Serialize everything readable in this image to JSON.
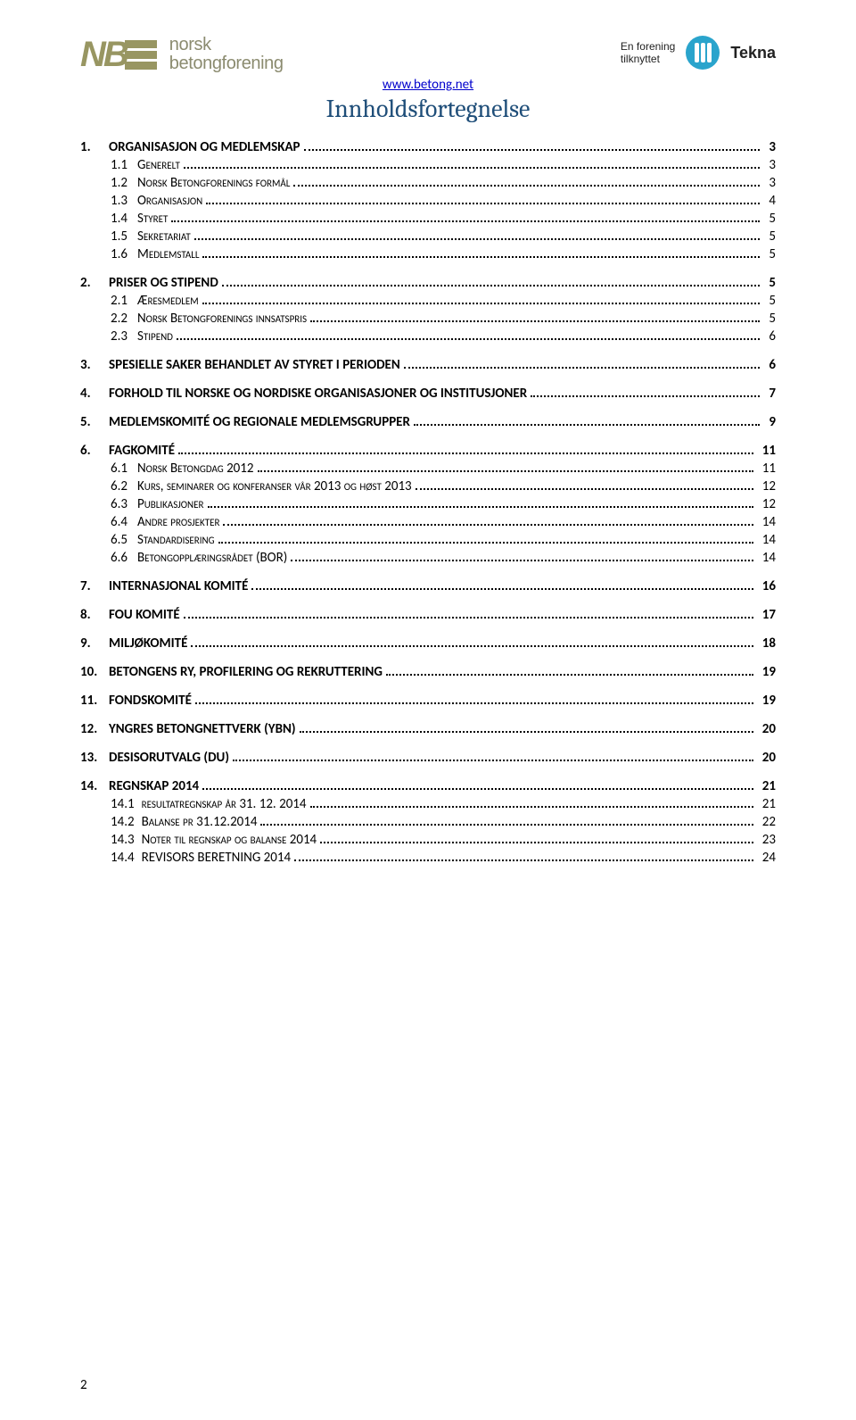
{
  "header": {
    "logo_abbr": "NB",
    "org_line1": "norsk",
    "org_line2": "betongforening",
    "url": "www.betong.net",
    "right_line1": "En forening",
    "right_line2": "tilknyttet",
    "tekna": "Tekna"
  },
  "title": "Innholdsfortegnelse",
  "toc": [
    {
      "level": 1,
      "num": "1.",
      "label": "ORGANISASJON OG MEDLEMSKAP",
      "page": "3"
    },
    {
      "level": 2,
      "num": "1.1",
      "label": "Generelt",
      "page": "3"
    },
    {
      "level": 2,
      "num": "1.2",
      "label": "Norsk Betongforenings formål",
      "page": "3"
    },
    {
      "level": 2,
      "num": "1.3",
      "label": "Organisasjon",
      "page": "4"
    },
    {
      "level": 2,
      "num": "1.4",
      "label": "Styret",
      "page": "5"
    },
    {
      "level": 2,
      "num": "1.5",
      "label": "Sekretariat",
      "page": "5"
    },
    {
      "level": 2,
      "num": "1.6",
      "label": "Medlemstall",
      "page": "5"
    },
    {
      "level": 1,
      "num": "2.",
      "label": "PRISER OG STIPEND",
      "page": "5"
    },
    {
      "level": 2,
      "num": "2.1",
      "label": "Æresmedlem",
      "page": "5"
    },
    {
      "level": 2,
      "num": "2.2",
      "label": "Norsk Betongforenings innsatspris",
      "page": "5"
    },
    {
      "level": 2,
      "num": "2.3",
      "label": "Stipend",
      "page": "6"
    },
    {
      "level": 1,
      "num": "3.",
      "label": "SPESIELLE SAKER BEHANDLET AV STYRET I PERIODEN",
      "page": "6"
    },
    {
      "level": 1,
      "num": "4.",
      "label": "FORHOLD TIL NORSKE OG NORDISKE ORGANISASJONER OG INSTITUSJONER",
      "page": "7"
    },
    {
      "level": 1,
      "num": "5.",
      "label": "MEDLEMSKOMITÉ OG REGIONALE MEDLEMSGRUPPER",
      "page": "9"
    },
    {
      "level": 1,
      "num": "6.",
      "label": "FAGKOMITÉ",
      "page": "11"
    },
    {
      "level": 2,
      "num": "6.1",
      "label": "Norsk Betongdag 2012",
      "page": "11"
    },
    {
      "level": 2,
      "num": "6.2",
      "label": "Kurs, seminarer og konferanser vår 2013 og høst 2013",
      "page": "12"
    },
    {
      "level": 2,
      "num": "6.3",
      "label": "Publikasjoner",
      "page": "12"
    },
    {
      "level": 2,
      "num": "6.4",
      "label": "Andre prosjekter",
      "page": "14"
    },
    {
      "level": 2,
      "num": "6.5",
      "label": "Standardisering",
      "page": "14"
    },
    {
      "level": 2,
      "num": "6.6",
      "label": "Betongopplæringsrådet (BOR)",
      "page": "14"
    },
    {
      "level": 1,
      "num": "7.",
      "label": "INTERNASJONAL KOMITÉ",
      "page": "16"
    },
    {
      "level": 1,
      "num": "8.",
      "label": "FOU KOMITÉ",
      "page": "17"
    },
    {
      "level": 1,
      "num": "9.",
      "label": "MILJØKOMITÉ",
      "page": "18"
    },
    {
      "level": 1,
      "num": "10.",
      "label": "BETONGENS RY, PROFILERING OG REKRUTTERING",
      "page": "19"
    },
    {
      "level": 1,
      "num": "11.",
      "label": "FONDSKOMITÉ",
      "page": "19"
    },
    {
      "level": 1,
      "num": "12.",
      "label": "YNGRES BETONGNETTVERK (YBN)",
      "page": "20"
    },
    {
      "level": 1,
      "num": "13.",
      "label": "DESISORUTVALG (DU)",
      "page": "20"
    },
    {
      "level": 1,
      "num": "14.",
      "label": "REGNSKAP 2014",
      "page": "21"
    },
    {
      "level": 2,
      "num": "14.1",
      "label": "resultatregnskap år 31. 12. 2014",
      "page": "21"
    },
    {
      "level": 2,
      "num": "14.2",
      "label": "Balanse pr 31.12.2014",
      "page": "22"
    },
    {
      "level": 2,
      "num": "14.3",
      "label": "Noter til regnskap og balanse 2014",
      "page": "23"
    },
    {
      "level": 2,
      "num": "14.4",
      "label": "REVISORS BERETNING 2014",
      "page": "24",
      "nosmallcaps": true
    }
  ],
  "page_number": "2",
  "colors": {
    "title_color": "#1f4e79",
    "logo_color": "#989662",
    "link_color": "#0000cc",
    "tekna_bg": "#2aa4cc"
  }
}
